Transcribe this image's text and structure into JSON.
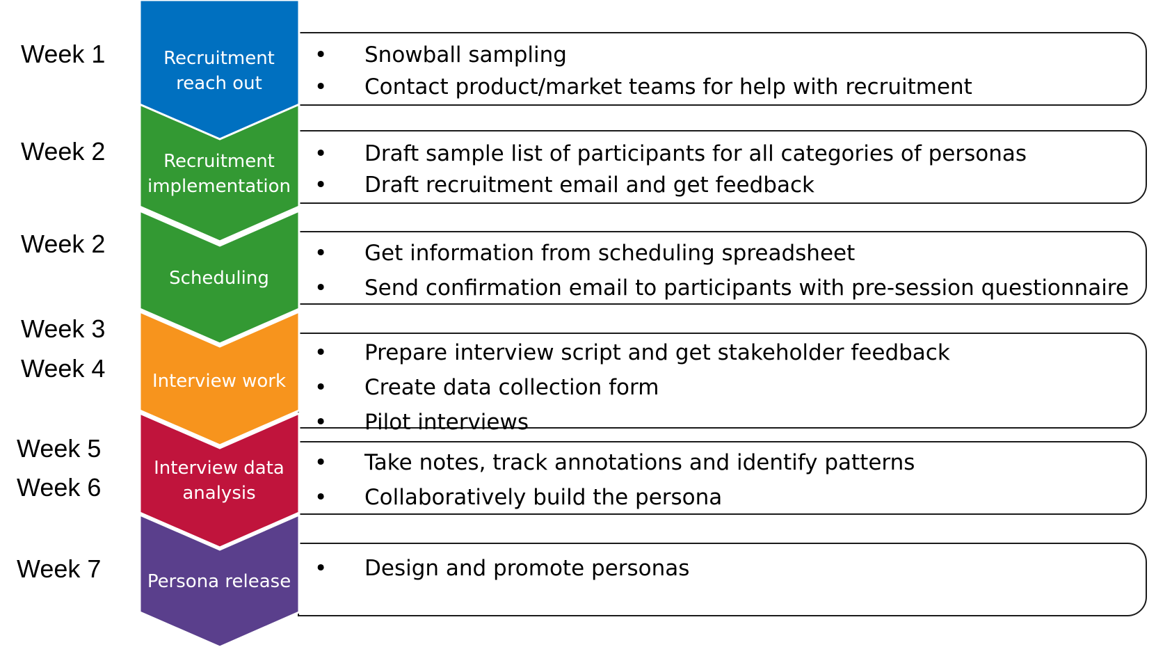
{
  "stages": [
    {
      "weeks": [
        "Week 1"
      ],
      "label": "Recruitment\nreach out",
      "color": "#0070C0",
      "tasks": [
        "Snowball sampling",
        "Contact product/market teams for help with recruitment"
      ]
    },
    {
      "weeks": [
        "Week 2"
      ],
      "label": "Recruitment\nimplementation",
      "color": "#339933",
      "tasks": [
        "Draft sample list of participants for all categories of personas",
        "Draft recruitment email and get feedback"
      ]
    },
    {
      "weeks": [
        "Week 2"
      ],
      "label": "Scheduling",
      "color": "#339933",
      "tasks": [
        "Get information from scheduling spreadsheet",
        "Send confirmation email to participants with pre-session questionnaire"
      ]
    },
    {
      "weeks": [
        "Week 3",
        "Week 4"
      ],
      "label": "Interview work",
      "color": "#F7941D",
      "tasks": [
        "Prepare interview script and get stakeholder feedback",
        "Create data collection form",
        "Pilot interviews"
      ]
    },
    {
      "weeks": [
        "Week 5",
        "Week 6"
      ],
      "label": "Interview data\nanalysis",
      "color": "#C0143C",
      "tasks": [
        "Take notes, track annotations and identify patterns",
        "Collaboratively build the persona"
      ]
    },
    {
      "weeks": [
        "Week 7"
      ],
      "label": "Persona release",
      "color": "#5A3F8C",
      "tasks": [
        "Design and promote personas"
      ]
    }
  ]
}
